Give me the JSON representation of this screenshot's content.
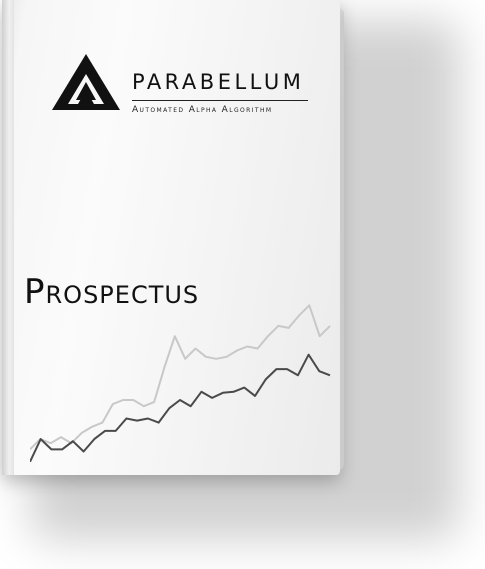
{
  "cover": {
    "brand_name": "PARABELLUM",
    "tagline": "Automated Alpha Algorithm",
    "title": "Prospectus"
  },
  "logo": {
    "icon": "parabellum-triangle-logo",
    "color": "#111111"
  },
  "decor_chart": {
    "type": "line",
    "description_colors": {
      "dark_series": "#4a4a4a",
      "light_series": "#c8c8c8"
    },
    "dark_series": [
      8,
      30,
      20,
      20,
      28,
      18,
      30,
      38,
      38,
      50,
      48,
      50,
      46,
      60,
      68,
      62,
      76,
      70,
      75,
      76,
      80,
      72,
      88,
      98,
      98,
      92,
      112,
      96,
      92
    ],
    "light_series": [
      20,
      30,
      26,
      32,
      26,
      36,
      42,
      46,
      64,
      68,
      68,
      62,
      66,
      100,
      130,
      108,
      118,
      110,
      108,
      110,
      116,
      120,
      118,
      130,
      140,
      138,
      150,
      160,
      130,
      140
    ]
  }
}
